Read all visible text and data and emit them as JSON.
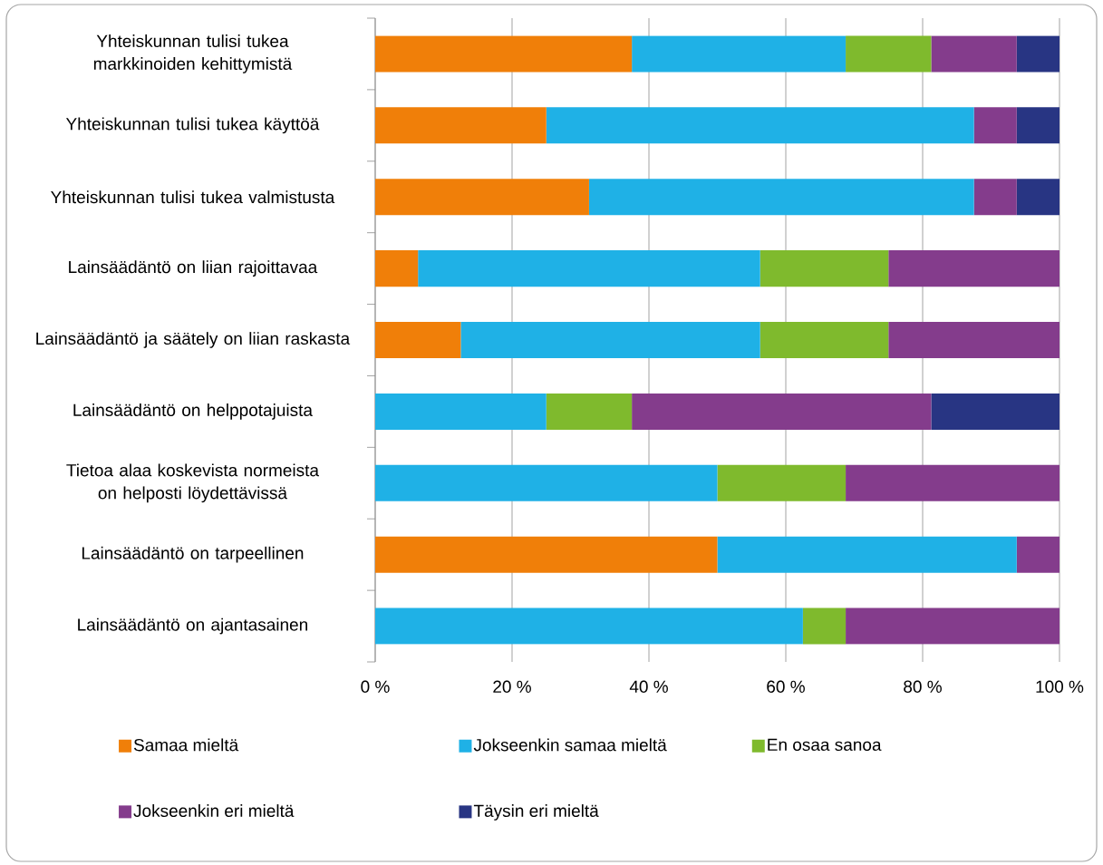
{
  "chart_data": {
    "type": "bar",
    "orientation": "horizontal",
    "stacked": true,
    "legend": "bottom",
    "grid": "x",
    "categories": [
      "Yhteiskunnan tulisi tukea markkinoiden kehittymistä",
      "Yhteiskunnan tulisi tukea käyttöä",
      "Yhteiskunnan tulisi tukea valmistusta",
      "Lainsäädäntö on liian rajoittavaa",
      "Lainsäädäntö ja säätely on liian raskasta",
      "Lainsäädäntö on helppotajuista",
      "Tietoa alaa koskevista normeista on helposti löydettävissä",
      "Lainsäädäntö on tarpeellinen",
      "Lainsäädäntö on ajantasainen"
    ],
    "xlim": [
      0,
      100
    ],
    "xticks": [
      {
        "value": 0,
        "label": "0 %"
      },
      {
        "value": 20,
        "label": "20 %"
      },
      {
        "value": 40,
        "label": "40 %"
      },
      {
        "value": 60,
        "label": "60 %"
      },
      {
        "value": 80,
        "label": "80 %"
      },
      {
        "value": 100,
        "label": "100 %"
      }
    ],
    "series": [
      {
        "name": "Samaa mieltä",
        "color": "#f07f09",
        "values": [
          37.5,
          25,
          31.25,
          6.25,
          12.5,
          0,
          0,
          50,
          0
        ]
      },
      {
        "name": "Jokseenkin samaa mieltä",
        "color": "#1fb1e6",
        "values": [
          31.25,
          62.5,
          56.25,
          50,
          43.75,
          25,
          50,
          43.75,
          62.5
        ]
      },
      {
        "name": "En osaa sanoa",
        "color": "#7fba2d",
        "values": [
          12.5,
          0,
          0,
          18.75,
          18.75,
          12.5,
          18.75,
          0,
          6.25
        ]
      },
      {
        "name": "Jokseenkin eri mieltä",
        "color": "#843c8c",
        "values": [
          12.5,
          6.25,
          6.25,
          25,
          25,
          43.75,
          31.25,
          6.25,
          31.25
        ]
      },
      {
        "name": "Täysin eri mieltä",
        "color": "#283583",
        "values": [
          6.25,
          6.25,
          6.25,
          0,
          0,
          18.75,
          0,
          0,
          0
        ]
      }
    ]
  }
}
